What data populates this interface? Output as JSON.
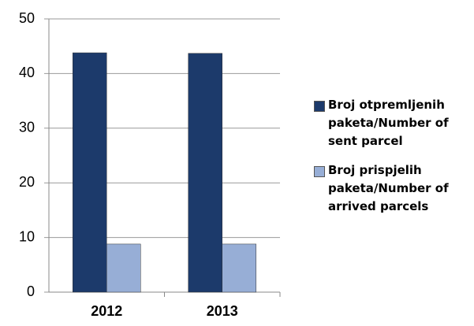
{
  "chart_data": {
    "type": "bar",
    "categories": [
      "2012",
      "2013"
    ],
    "series": [
      {
        "name": "Broj otpremljenih paketa/Number of sent parcel",
        "color": "#1c3a6b",
        "values": [
          43.8,
          43.7
        ]
      },
      {
        "name": "Broj prispjelih paketa/Number of arrived parcels",
        "color": "#97aed6",
        "values": [
          8.8,
          8.8
        ]
      }
    ],
    "ylim": [
      0,
      50
    ],
    "yticks": [
      0,
      10,
      20,
      30,
      40,
      50
    ],
    "grid": true,
    "legend": "right"
  }
}
